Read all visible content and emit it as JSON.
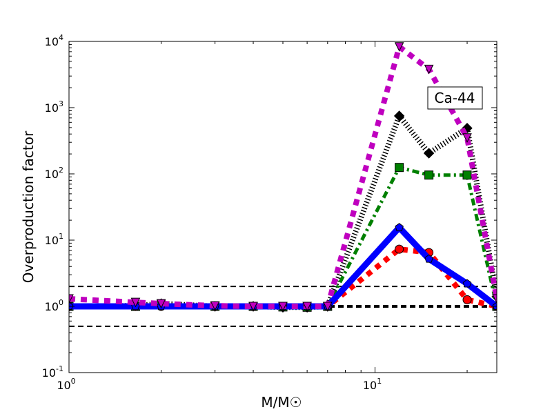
{
  "chart_data": {
    "type": "line",
    "title": "",
    "xlabel": "M/M☉",
    "ylabel": "Overproduction factor",
    "xscale": "log",
    "yscale": "log",
    "xlim": [
      1,
      25
    ],
    "ylim": [
      0.1,
      10000
    ],
    "x_tick_labels": [
      {
        "base": "10",
        "exp": "0",
        "value": 1
      },
      {
        "base": "10",
        "exp": "1",
        "value": 10
      }
    ],
    "y_tick_labels": [
      {
        "base": "10",
        "exp": "-1",
        "value": 0.1
      },
      {
        "base": "10",
        "exp": "0",
        "value": 1
      },
      {
        "base": "10",
        "exp": "1",
        "value": 10
      },
      {
        "base": "10",
        "exp": "2",
        "value": 100
      },
      {
        "base": "10",
        "exp": "3",
        "value": 1000
      },
      {
        "base": "10",
        "exp": "4",
        "value": 10000
      }
    ],
    "annotation": "Ca-44",
    "reference_lines": [
      2,
      1,
      0.5
    ],
    "grid": false,
    "x": [
      1,
      1.65,
      2,
      3,
      4,
      5,
      6,
      7,
      12,
      15,
      20,
      25
    ],
    "series": [
      {
        "color": "#ff0000",
        "style": "dotted",
        "marker": "circle",
        "values": [
          1,
          1,
          1,
          1,
          1,
          1,
          1,
          1,
          7.3,
          6.5,
          1.26,
          1.0
        ]
      },
      {
        "color": "#0000ff",
        "style": "solid",
        "marker": "pentagon",
        "values": [
          1,
          1,
          1,
          1,
          1,
          1,
          1,
          1,
          15.5,
          5.2,
          2.2,
          1.0
        ]
      },
      {
        "color": "#008000",
        "style": "dashdot",
        "marker": "square",
        "values": [
          1,
          1,
          1.05,
          1,
          1,
          0.98,
          0.97,
          1,
          125,
          96,
          96,
          1.0
        ]
      },
      {
        "color": "#000000",
        "style": "dotted",
        "marker": "diamond",
        "values": [
          1,
          1.02,
          1.1,
          1,
          1,
          0.97,
          0.97,
          1,
          750,
          205,
          490,
          1.4
        ]
      },
      {
        "color": "#bf00bf",
        "style": "dotted",
        "marker": "triangle-down",
        "values": [
          1.3,
          1.15,
          1.1,
          1.02,
          1.0,
          1.0,
          1.0,
          1.0,
          8300,
          3800,
          350,
          1.3
        ]
      }
    ]
  }
}
